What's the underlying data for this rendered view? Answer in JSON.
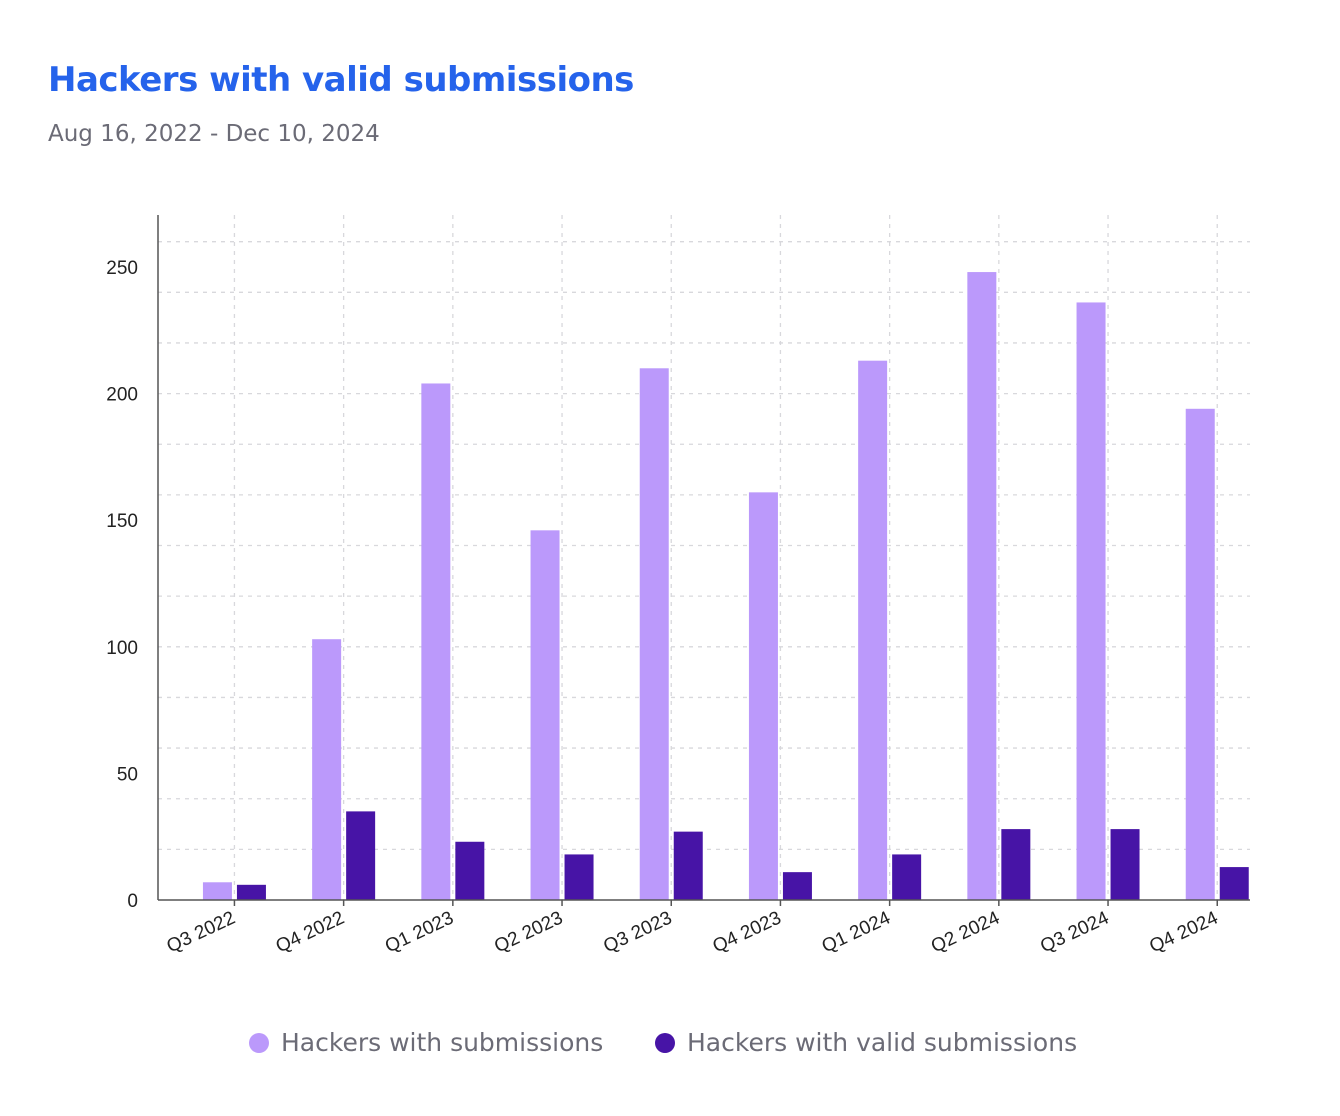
{
  "header": {
    "title": "Hackers with valid submissions",
    "subtitle": "Aug 16, 2022 - Dec 10, 2024"
  },
  "chart_data": {
    "type": "bar",
    "title": "Hackers with valid submissions",
    "subtitle": "Aug 16, 2022 - Dec 10, 2024",
    "xlabel": "",
    "ylabel": "",
    "categories": [
      "Q3 2022",
      "Q4 2022",
      "Q1 2023",
      "Q2 2023",
      "Q3 2023",
      "Q4 2023",
      "Q1 2024",
      "Q2 2024",
      "Q3 2024",
      "Q4 2024"
    ],
    "series": [
      {
        "name": "Hackers with submissions",
        "color": "#bb99fb",
        "values": [
          7,
          103,
          204,
          146,
          210,
          161,
          213,
          248,
          236,
          194
        ]
      },
      {
        "name": "Hackers with valid submissions",
        "color": "#4714a6",
        "values": [
          6,
          35,
          23,
          18,
          27,
          11,
          18,
          28,
          28,
          13
        ]
      }
    ],
    "ylim": [
      0,
      260
    ],
    "yticks": [
      0,
      50,
      100,
      150,
      200,
      250
    ],
    "grid": true,
    "legend_position": "bottom"
  }
}
